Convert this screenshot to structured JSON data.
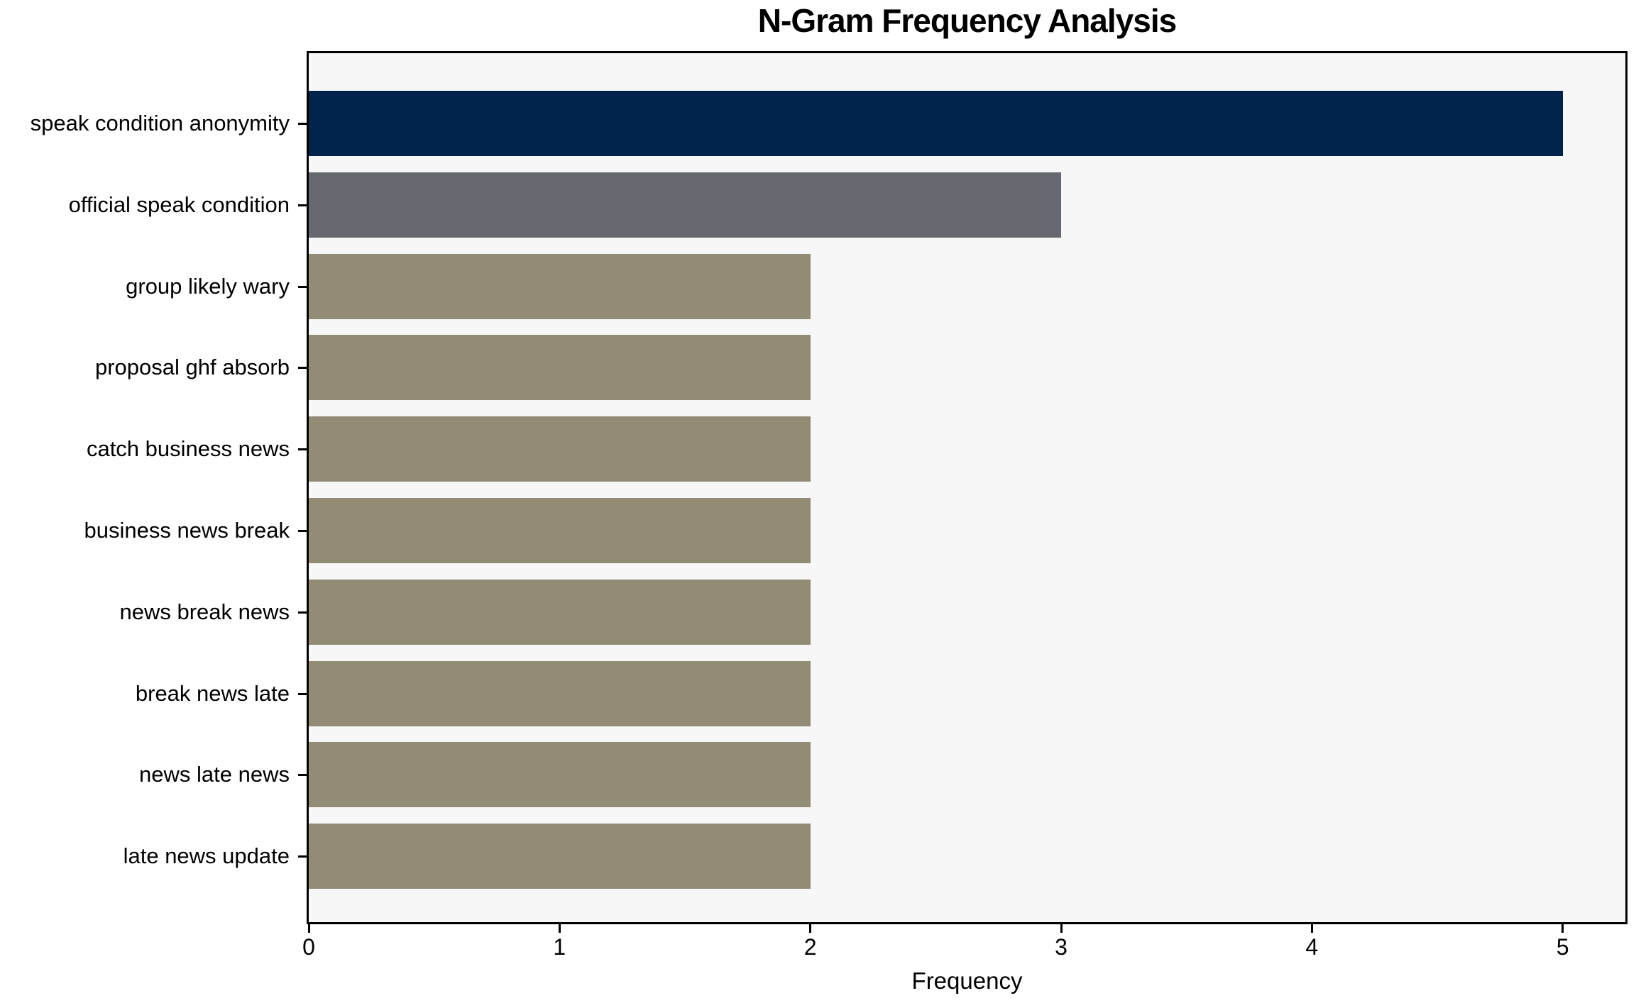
{
  "chart_data": {
    "type": "bar",
    "orientation": "horizontal",
    "title": "N-Gram Frequency Analysis",
    "xlabel": "Frequency",
    "ylabel": "",
    "categories": [
      "speak condition anonymity",
      "official speak condition",
      "group likely wary",
      "proposal ghf absorb",
      "catch business news",
      "business news break",
      "news break news",
      "break news late",
      "news late news",
      "late news update"
    ],
    "values": [
      5,
      3,
      2,
      2,
      2,
      2,
      2,
      2,
      2,
      2
    ],
    "bar_colors": [
      "#02234c",
      "#66686f",
      "#938c75",
      "#938c75",
      "#938c75",
      "#938c75",
      "#938c75",
      "#938c75",
      "#938c75",
      "#938c75"
    ],
    "xlim": [
      0,
      5.25
    ],
    "x_ticks": [
      0,
      1,
      2,
      3,
      4,
      5
    ],
    "grid": false,
    "legend": "none",
    "plot_background": "#f7f7f8",
    "figure_background": "#ffffff",
    "frame_color": "#000000"
  }
}
